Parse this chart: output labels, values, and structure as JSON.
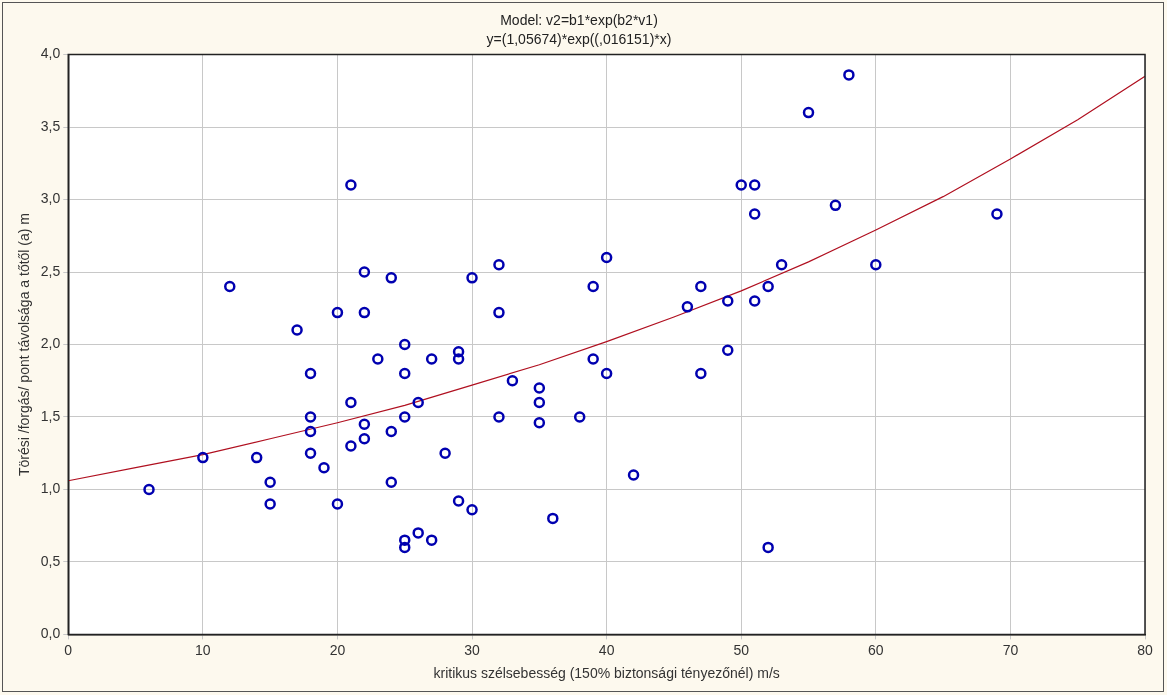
{
  "chart_data": {
    "type": "scatter",
    "title": "Model: v2=b1*exp(b2*v1)",
    "subtitle": "y=(1,05674)*exp((,016151)*x)",
    "xlabel": "kritikus szélsebesség (150% biztonsági tényezőnél) m/s",
    "ylabel": "Törési /forgás/ pont távolsága a tőtől (a) m",
    "xlim": [
      0,
      80
    ],
    "xticks": [
      0,
      10,
      20,
      30,
      40,
      50,
      60,
      70,
      80
    ],
    "ylim": [
      0,
      4
    ],
    "yticks": [
      {
        "value": 0,
        "label": "0,0"
      },
      {
        "value": 0.5,
        "label": "0,5"
      },
      {
        "value": 1,
        "label": "1,0"
      },
      {
        "value": 1.5,
        "label": "1,5"
      },
      {
        "value": 2,
        "label": "2,0"
      },
      {
        "value": 2.5,
        "label": "2,5"
      },
      {
        "value": 3,
        "label": "3,0"
      },
      {
        "value": 3.5,
        "label": "3,5"
      },
      {
        "value": 4,
        "label": "4,0"
      }
    ],
    "grid": true,
    "legend": false,
    "marker": "circle",
    "series": [
      {
        "type": "scatter",
        "color": "#0000b0",
        "x": [
          6,
          10,
          12,
          14,
          15,
          15,
          17,
          18,
          18,
          18,
          18,
          19,
          20,
          20,
          21,
          21,
          21,
          22,
          22,
          22,
          22,
          23,
          24,
          24,
          24,
          25,
          25,
          25,
          25,
          25,
          26,
          26,
          27,
          27,
          28,
          29,
          29,
          29,
          30,
          30,
          32,
          32,
          32,
          33,
          35,
          35,
          35,
          36,
          38,
          39,
          39,
          40,
          40,
          42,
          46,
          47,
          47,
          49,
          49,
          50,
          51,
          51,
          51,
          52,
          52,
          53,
          55,
          57,
          58,
          60,
          69
        ],
        "values": [
          1.0,
          1.22,
          2.4,
          1.22,
          1.05,
          0.9,
          2.1,
          1.8,
          1.5,
          1.4,
          1.25,
          1.15,
          2.22,
          0.9,
          3.1,
          1.6,
          1.3,
          2.5,
          2.22,
          1.45,
          1.35,
          1.9,
          2.46,
          1.4,
          1.05,
          2.0,
          1.8,
          1.5,
          0.65,
          0.6,
          1.6,
          0.7,
          1.9,
          0.65,
          1.25,
          1.95,
          1.9,
          0.92,
          2.46,
          0.86,
          2.55,
          2.22,
          1.5,
          1.75,
          1.7,
          1.6,
          1.46,
          0.8,
          1.5,
          2.4,
          1.9,
          2.6,
          1.8,
          1.1,
          2.26,
          2.4,
          1.8,
          2.3,
          1.96,
          3.1,
          3.1,
          2.9,
          2.3,
          2.4,
          0.6,
          2.55,
          3.6,
          2.96,
          3.86,
          2.55,
          2.9
        ]
      },
      {
        "type": "line",
        "color": "#b01020",
        "marker": "none",
        "x": [
          0,
          5,
          10,
          15,
          20,
          25,
          30,
          35,
          40,
          45,
          50,
          55,
          60,
          65,
          70,
          75,
          80
        ],
        "values": [
          1.06,
          1.15,
          1.24,
          1.35,
          1.46,
          1.58,
          1.72,
          1.86,
          2.02,
          2.19,
          2.37,
          2.57,
          2.79,
          3.02,
          3.28,
          3.55,
          3.85
        ]
      }
    ]
  }
}
